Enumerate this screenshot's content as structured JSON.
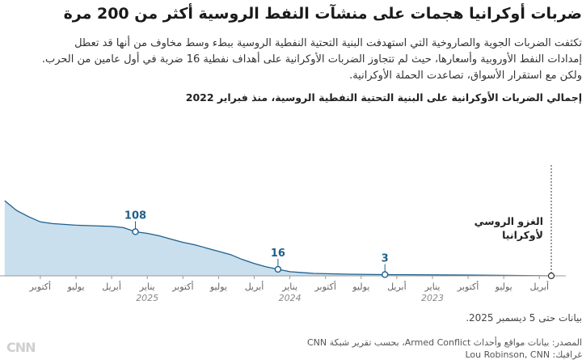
{
  "title": "ضربات أوكرانيا هجمات على منشآت النفط الروسية أكثر من 200 مرة",
  "subtitle_lines": [
    "تكثفت الضربات الجوية والصاروخية التي استهدفت البنية التحتية النفطية الروسية ببطء وسط مخاوف من أنها قد تعطل",
    "إمدادات النفط الأوروبية وأسعارها، حيث لم تتجاوز الضربات الأوكرانية على أهداف نفطية 16 ضربة في أول عامين من الحرب.",
    "ولكن مع استقرار الأسواق، تصاعدت الحملة الأوكرانية."
  ],
  "chart_heading": "إجمالي الضربات الأوكرانية على البنية التحتية النفطية الروسية، منذ فبراير 2022",
  "chart_data": {
    "type": "area",
    "title": "إجمالي الضربات الأوكرانية على البنية التحتية النفطية الروسية، منذ فبراير 2022",
    "x_direction": "right-to-left",
    "x_unit": "months since Feb 2022",
    "x_range": [
      0,
      46
    ],
    "ylim": [
      0,
      200
    ],
    "x": [
      0,
      7,
      14,
      17,
      20,
      22,
      23,
      24,
      25,
      26,
      27,
      28,
      29,
      30,
      31,
      32,
      33,
      34,
      35,
      36,
      37,
      38,
      39,
      40,
      41,
      42,
      43,
      44,
      45,
      46
    ],
    "y": [
      0,
      2,
      3,
      4,
      6,
      10,
      16,
      22,
      30,
      40,
      52,
      60,
      68,
      76,
      82,
      90,
      98,
      104,
      108,
      118,
      121,
      122,
      123,
      124,
      126,
      128,
      132,
      145,
      160,
      184
    ],
    "ticks": [
      {
        "x": 1,
        "label": "أبريل",
        "year": ""
      },
      {
        "x": 4,
        "label": "يوليو",
        "year": ""
      },
      {
        "x": 7,
        "label": "أكتوبر",
        "year": ""
      },
      {
        "x": 10,
        "label": "يناير",
        "year": "2023"
      },
      {
        "x": 13,
        "label": "أبريل",
        "year": ""
      },
      {
        "x": 16,
        "label": "يوليو",
        "year": ""
      },
      {
        "x": 19,
        "label": "أكتوبر",
        "year": ""
      },
      {
        "x": 22,
        "label": "يناير",
        "year": "2024"
      },
      {
        "x": 25,
        "label": "أبريل",
        "year": ""
      },
      {
        "x": 28,
        "label": "يوليو",
        "year": ""
      },
      {
        "x": 31,
        "label": "أكتوبر",
        "year": ""
      },
      {
        "x": 34,
        "label": "يناير",
        "year": "2025"
      },
      {
        "x": 37,
        "label": "أبريل",
        "year": ""
      },
      {
        "x": 40,
        "label": "يوليو",
        "year": ""
      },
      {
        "x": 43,
        "label": "أكتوبر",
        "year": ""
      }
    ],
    "annotations": [
      {
        "x": 14,
        "y": 3,
        "label": "3"
      },
      {
        "x": 23,
        "y": 16,
        "label": "16"
      },
      {
        "x": 35,
        "y": 108,
        "label": "108"
      }
    ],
    "event": {
      "x": 0,
      "label_lines": [
        "الغزو الروسي",
        "لأوكرانيا"
      ]
    }
  },
  "colors": {
    "area": "#c9dfee",
    "line": "#1f5f8b",
    "text": "#1f5f8b",
    "grid": "#dddddd"
  },
  "date_note": "بيانات حتى 5 ديسمبر 2025.",
  "source": "المصدر: بيانات مواقع وأحداث Armed Conflict، بحسب تقرير شبكة CNN",
  "credit": "غرافيك: Lou Robinson, CNN",
  "logo_text": "CNN"
}
